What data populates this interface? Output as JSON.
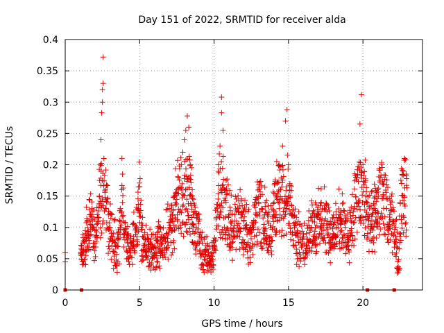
{
  "chart_data": {
    "type": "scatter",
    "title": "Day 151 of 2022, SRMTID for receiver alda",
    "xlabel": "GPS time / hours",
    "ylabel": "SRMTID / TECUs",
    "xlim": [
      0,
      24
    ],
    "ylim": [
      0,
      0.4
    ],
    "xticks": [
      0,
      5,
      10,
      15,
      20
    ],
    "xtick_labels": [
      "0",
      "5",
      "10",
      "15",
      "20"
    ],
    "yticks": [
      0,
      0.05,
      0.1,
      0.15,
      0.2,
      0.25,
      0.3,
      0.35,
      0.4
    ],
    "ytick_labels": [
      "0",
      "0.05",
      "0.1",
      "0.15",
      "0.2",
      "0.25",
      "0.3",
      "0.35",
      "0.4"
    ],
    "grid": true,
    "marker": "+",
    "colors": {
      "series": "#e00000",
      "grid": "#a0a0a0",
      "axis": "#000000"
    },
    "series": [
      {
        "name": "SRMTID",
        "points": [
          [
            0.0,
            0.045
          ],
          [
            0.0,
            0.06
          ],
          [
            1.05,
            0.06
          ],
          [
            1.1,
            0.07
          ],
          [
            1.2,
            0.075
          ],
          [
            1.3,
            0.08
          ],
          [
            1.4,
            0.09
          ],
          [
            1.5,
            0.1
          ],
          [
            1.6,
            0.11
          ],
          [
            1.7,
            0.12
          ],
          [
            1.8,
            0.13
          ],
          [
            1.9,
            0.1
          ],
          [
            2.0,
            0.095
          ],
          [
            2.1,
            0.105
          ],
          [
            2.2,
            0.11
          ],
          [
            2.3,
            0.15
          ],
          [
            2.35,
            0.2
          ],
          [
            2.4,
            0.24
          ],
          [
            2.45,
            0.283
          ],
          [
            2.5,
            0.3
          ],
          [
            2.5,
            0.32
          ],
          [
            2.55,
            0.33
          ],
          [
            2.55,
            0.372
          ],
          [
            2.6,
            0.21
          ],
          [
            2.7,
            0.16
          ],
          [
            2.8,
            0.14
          ],
          [
            2.9,
            0.12
          ],
          [
            3.0,
            0.1
          ],
          [
            3.1,
            0.09
          ],
          [
            3.2,
            0.085
          ],
          [
            3.3,
            0.08
          ],
          [
            3.4,
            0.075
          ],
          [
            3.5,
            0.07
          ],
          [
            3.6,
            0.08
          ],
          [
            3.7,
            0.13
          ],
          [
            3.8,
            0.16
          ],
          [
            3.85,
            0.185
          ],
          [
            3.9,
            0.11
          ],
          [
            4.0,
            0.09
          ],
          [
            4.2,
            0.08
          ],
          [
            4.4,
            0.075
          ],
          [
            4.6,
            0.085
          ],
          [
            4.8,
            0.1
          ],
          [
            4.9,
            0.13
          ],
          [
            5.0,
            0.165
          ],
          [
            5.1,
            0.1
          ],
          [
            5.2,
            0.085
          ],
          [
            5.4,
            0.08
          ],
          [
            5.6,
            0.07
          ],
          [
            5.8,
            0.065
          ],
          [
            6.0,
            0.07
          ],
          [
            6.2,
            0.075
          ],
          [
            6.4,
            0.08
          ],
          [
            6.6,
            0.085
          ],
          [
            6.8,
            0.09
          ],
          [
            7.0,
            0.1
          ],
          [
            7.2,
            0.12
          ],
          [
            7.4,
            0.14
          ],
          [
            7.5,
            0.16
          ],
          [
            7.6,
            0.18
          ],
          [
            7.8,
            0.2
          ],
          [
            7.9,
            0.22
          ],
          [
            8.0,
            0.24
          ],
          [
            8.1,
            0.255
          ],
          [
            8.2,
            0.278
          ],
          [
            8.3,
            0.26
          ],
          [
            8.4,
            0.2
          ],
          [
            8.5,
            0.15
          ],
          [
            8.6,
            0.12
          ],
          [
            8.8,
            0.1
          ],
          [
            9.0,
            0.085
          ],
          [
            9.2,
            0.075
          ],
          [
            9.4,
            0.065
          ],
          [
            9.6,
            0.055
          ],
          [
            9.8,
            0.05
          ],
          [
            10.0,
            0.07
          ],
          [
            10.2,
            0.13
          ],
          [
            10.3,
            0.2
          ],
          [
            10.4,
            0.23
          ],
          [
            10.5,
            0.283
          ],
          [
            10.5,
            0.308
          ],
          [
            10.6,
            0.255
          ],
          [
            10.7,
            0.16
          ],
          [
            10.8,
            0.14
          ],
          [
            11.0,
            0.12
          ],
          [
            11.2,
            0.11
          ],
          [
            11.4,
            0.12
          ],
          [
            11.6,
            0.13
          ],
          [
            11.8,
            0.12
          ],
          [
            12.0,
            0.11
          ],
          [
            12.2,
            0.1
          ],
          [
            12.4,
            0.09
          ],
          [
            12.6,
            0.1
          ],
          [
            12.8,
            0.12
          ],
          [
            13.0,
            0.14
          ],
          [
            13.2,
            0.13
          ],
          [
            13.4,
            0.12
          ],
          [
            13.6,
            0.11
          ],
          [
            13.8,
            0.1
          ],
          [
            14.0,
            0.12
          ],
          [
            14.2,
            0.15
          ],
          [
            14.4,
            0.2
          ],
          [
            14.6,
            0.23
          ],
          [
            14.8,
            0.27
          ],
          [
            14.9,
            0.288
          ],
          [
            15.0,
            0.2
          ],
          [
            15.1,
            0.15
          ],
          [
            15.2,
            0.12
          ],
          [
            15.4,
            0.1
          ],
          [
            15.6,
            0.09
          ],
          [
            15.8,
            0.08
          ],
          [
            16.0,
            0.085
          ],
          [
            16.2,
            0.09
          ],
          [
            16.4,
            0.1
          ],
          [
            16.6,
            0.11
          ],
          [
            16.8,
            0.1
          ],
          [
            17.0,
            0.12
          ],
          [
            17.2,
            0.14
          ],
          [
            17.4,
            0.13
          ],
          [
            17.6,
            0.11
          ],
          [
            17.8,
            0.1
          ],
          [
            18.0,
            0.09
          ],
          [
            18.2,
            0.1
          ],
          [
            18.4,
            0.12
          ],
          [
            18.6,
            0.11
          ],
          [
            18.8,
            0.1
          ],
          [
            19.0,
            0.09
          ],
          [
            19.2,
            0.11
          ],
          [
            19.4,
            0.13
          ],
          [
            19.6,
            0.18
          ],
          [
            19.8,
            0.265
          ],
          [
            19.9,
            0.312
          ],
          [
            20.0,
            0.2
          ],
          [
            20.2,
            0.15
          ],
          [
            20.4,
            0.12
          ],
          [
            20.6,
            0.11
          ],
          [
            20.8,
            0.13
          ],
          [
            21.0,
            0.16
          ],
          [
            21.2,
            0.18
          ],
          [
            21.4,
            0.15
          ],
          [
            21.6,
            0.13
          ],
          [
            21.8,
            0.12
          ],
          [
            22.0,
            0.11
          ],
          [
            22.2,
            0.1
          ],
          [
            22.4,
            0.033
          ],
          [
            22.5,
            0.14
          ],
          [
            22.6,
            0.17
          ],
          [
            22.7,
            0.19
          ],
          [
            22.8,
            0.21
          ],
          [
            22.9,
            0.185
          ]
        ],
        "zero_markers": [
          0.0,
          1.1,
          20.3,
          22.1
        ]
      }
    ]
  }
}
